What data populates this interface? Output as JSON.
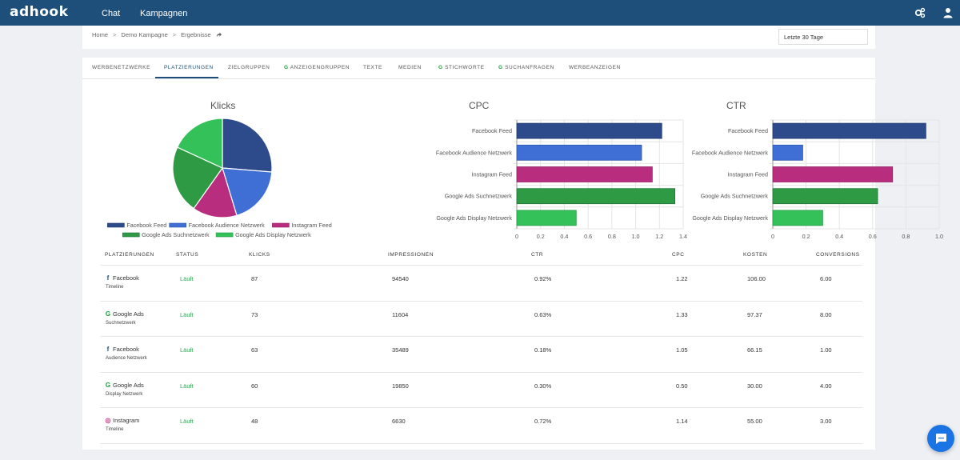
{
  "app": {
    "logo": "adhook"
  },
  "nav": {
    "chat": "Chat",
    "kampagnen": "Kampagnen"
  },
  "icons": {
    "settings": "gears-icon",
    "user": "user-icon",
    "chat": "chat-bubble-icon",
    "share": "share-arrow-icon"
  },
  "breadcrumb": {
    "items": [
      "Home",
      "Demo Kampagne",
      "Ergebnisse"
    ],
    "separator": ">"
  },
  "date_range": {
    "value": "Letzte 30 Tage"
  },
  "tabs": [
    {
      "label": "WERBENETZWERKE",
      "google": false
    },
    {
      "label": "PLATZIERUNGEN",
      "google": false,
      "active": true
    },
    {
      "label": "ZIELGRUPPEN",
      "google": false
    },
    {
      "label": "ANZEIGENGRUPPEN",
      "google": true
    },
    {
      "label": "TEXTE",
      "google": false
    },
    {
      "label": "MEDIEN",
      "google": false
    },
    {
      "label": "STICHWORTE",
      "google": true
    },
    {
      "label": "SUCHANFRAGEN",
      "google": true
    },
    {
      "label": "WERBEANZEIGEN",
      "google": false
    }
  ],
  "google_glyph": "G",
  "colors": {
    "brand": "#1d4f7a",
    "facebook_feed": "#2d4a8a",
    "facebook_audience": "#3f6fd4",
    "instagram_feed": "#b92d7f",
    "google_search": "#2e9a44",
    "google_display": "#34c15a",
    "status_running": "#3aa65a"
  },
  "chart_data": [
    {
      "type": "pie",
      "title": "Klicks",
      "categories": [
        "Facebook Feed",
        "Facebook Audience Netzwerk",
        "Instagram Feed",
        "Google Ads Suchnetzwerk",
        "Google Ads Display Netzwerk"
      ],
      "values": [
        87,
        63,
        48,
        73,
        60
      ],
      "legend": "bottom"
    },
    {
      "type": "bar",
      "orientation": "horizontal",
      "title": "CPC",
      "categories": [
        "Facebook Feed",
        "Facebook Audience Netzwerk",
        "Instagram Feed",
        "Google Ads Suchnetzwerk",
        "Google Ads Display Netzwerk"
      ],
      "values": [
        1.22,
        1.05,
        1.14,
        1.33,
        0.5
      ],
      "xlim": [
        0,
        1.4
      ],
      "ticks": [
        "0",
        "0.2",
        "0.4",
        "0.6",
        "0.8",
        "1.0",
        "1.2",
        "1.4"
      ],
      "grid": true
    },
    {
      "type": "bar",
      "orientation": "horizontal",
      "title": "CTR",
      "categories": [
        "Facebook Feed",
        "Facebook Audience Netzwerk",
        "Instagram Feed",
        "Google Ads Suchnetzwerk",
        "Google Ads Display Netzwerk"
      ],
      "values": [
        0.92,
        0.18,
        0.72,
        0.63,
        0.3
      ],
      "xlim": [
        0,
        1.0
      ],
      "ticks": [
        "0",
        "0.2",
        "0.4",
        "0.6",
        "0.8",
        "1.0"
      ],
      "grid": true
    }
  ],
  "table": {
    "headers": [
      "PLATZIERUNGEN",
      "STATUS",
      "KLICKS",
      "IMPRESSIONEN",
      "CTR",
      "CPC",
      "KOSTEN",
      "CONVERSIONS"
    ],
    "rows": [
      {
        "icon": "facebook-icon",
        "glyph": "f",
        "network": "Facebook",
        "placement": "Timeline",
        "status": "Läuft",
        "klicks": "87",
        "impressionen": "94540",
        "ctr": "0.92%",
        "cpc": "1.22",
        "kosten": "106.00",
        "conversions": "6.00"
      },
      {
        "icon": "google-icon",
        "glyph": "G",
        "network": "Google Ads",
        "placement": "Suchnetzwerk",
        "status": "Läuft",
        "klicks": "73",
        "impressionen": "11604",
        "ctr": "0.63%",
        "cpc": "1.33",
        "kosten": "97.37",
        "conversions": "8.00"
      },
      {
        "icon": "facebook-icon",
        "glyph": "f",
        "network": "Facebook",
        "placement": "Audience Netzwerk",
        "status": "Läuft",
        "klicks": "63",
        "impressionen": "35489",
        "ctr": "0.18%",
        "cpc": "1.05",
        "kosten": "66.15",
        "conversions": "1.00"
      },
      {
        "icon": "google-icon",
        "glyph": "G",
        "network": "Google Ads",
        "placement": "Display Netzwerk",
        "status": "Läuft",
        "klicks": "60",
        "impressionen": "19850",
        "ctr": "0.30%",
        "cpc": "0.50",
        "kosten": "30.00",
        "conversions": "4.00"
      },
      {
        "icon": "instagram-icon",
        "glyph": "◎",
        "network": "Instagram",
        "placement": "Timeline",
        "status": "Läuft",
        "klicks": "48",
        "impressionen": "6630",
        "ctr": "0.72%",
        "cpc": "1.14",
        "kosten": "55.00",
        "conversions": "3.00"
      }
    ]
  }
}
